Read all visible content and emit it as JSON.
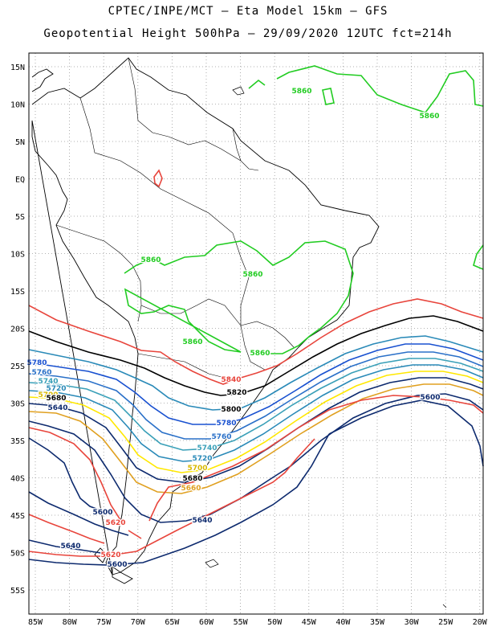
{
  "header": {
    "line1": "CPTEC/INPE/MCT –  Eta Model 15km – GFS",
    "line2": "Geopotential Height 500hPa – 29/09/2020 12UTC fct=214h"
  },
  "axes": {
    "lat_labels": [
      "15N",
      "10N",
      "5N",
      "EQ",
      "5S",
      "10S",
      "15S",
      "20S",
      "25S",
      "30S",
      "35S",
      "40S",
      "45S",
      "50S",
      "55S"
    ],
    "lon_labels": [
      "85W",
      "80W",
      "75W",
      "70W",
      "65W",
      "60W",
      "55W",
      "50W",
      "45W",
      "40W",
      "35W",
      "30W",
      "25W",
      "20W"
    ]
  },
  "colors": {
    "c5600": "#0d2a6e",
    "c5620": "#e8453c",
    "c5640": "#0d2a6e",
    "c5660": "#e0a020",
    "c5700": "#ffe800",
    "c5720": "#2a8ab8",
    "c5740": "#3aa0b8",
    "c5760": "#2a70c8",
    "c5780": "#1850d0",
    "c5820": "#000000",
    "c5840": "#e8453c",
    "c5860": "#22cc22"
  },
  "contour_labels": [
    {
      "text": "5860"
    },
    {
      "text": "5860"
    },
    {
      "text": "5860"
    },
    {
      "text": "5860"
    },
    {
      "text": "5860"
    },
    {
      "text": "5860"
    },
    {
      "text": "5840"
    },
    {
      "text": "5820"
    },
    {
      "text": "5800"
    },
    {
      "text": "5780"
    },
    {
      "text": "5760"
    },
    {
      "text": "5740"
    },
    {
      "text": "5720"
    },
    {
      "text": "5700"
    },
    {
      "text": "5660"
    },
    {
      "text": "5680"
    },
    {
      "text": "5640"
    },
    {
      "text": "5600"
    },
    {
      "text": "5620"
    },
    {
      "text": "5640"
    },
    {
      "text": "5620"
    },
    {
      "text": "5600"
    },
    {
      "text": "5600"
    },
    {
      "text": "5780"
    },
    {
      "text": "5760"
    },
    {
      "text": "5740"
    },
    {
      "text": "5720"
    },
    {
      "text": "5700"
    },
    {
      "text": "5680"
    },
    {
      "text": "5640"
    }
  ]
}
